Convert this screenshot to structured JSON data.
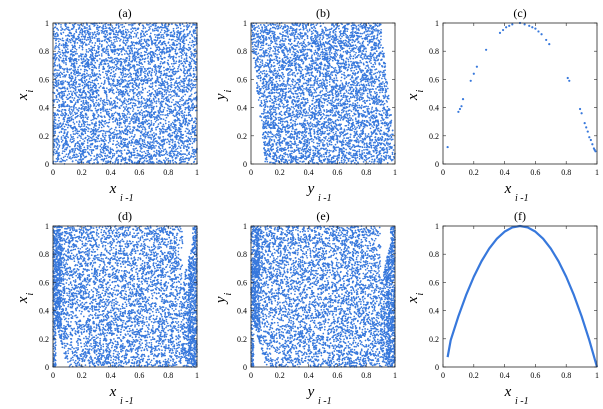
{
  "colors": {
    "series": "#3778dc",
    "axis": "#262626",
    "background": "#ffffff"
  },
  "chart_data": [
    {
      "panel": "(a)",
      "type": "scatter",
      "pattern": "uniform",
      "xlabel": "x",
      "xlabel_sub": "i -1",
      "ylabel": "x",
      "ylabel_sub": "i",
      "xlim": [
        0,
        1
      ],
      "ylim": [
        0,
        1
      ],
      "xticks": [
        "0",
        "0.2",
        "0.4",
        "0.6",
        "0.8",
        "1"
      ],
      "yticks": [
        "0",
        "0.2",
        "0.4",
        "0.6",
        "0.8",
        "1"
      ],
      "n_points": 5000,
      "grid": false
    },
    {
      "panel": "(b)",
      "type": "scatter",
      "pattern": "edge-curved",
      "xlabel": "y",
      "xlabel_sub": "i -1",
      "ylabel": "y",
      "ylabel_sub": "i",
      "xlim": [
        0,
        1
      ],
      "ylim": [
        0,
        1
      ],
      "xticks": [
        "0",
        "0.2",
        "0.4",
        "0.6",
        "0.8",
        "1"
      ],
      "yticks": [
        "0",
        "0.2",
        "0.4",
        "0.6",
        "0.8",
        "1"
      ],
      "n_points": 5000,
      "grid": false
    },
    {
      "panel": "(c)",
      "type": "scatter",
      "pattern": "points",
      "xlabel": "x",
      "xlabel_sub": "i -1",
      "ylabel": "x",
      "ylabel_sub": "i",
      "xlim": [
        0,
        1
      ],
      "ylim": [
        0,
        1
      ],
      "xticks": [
        "0",
        "0.2",
        "0.4",
        "0.6",
        "0.8",
        "1"
      ],
      "yticks": [
        "0",
        "0.2",
        "0.4",
        "0.6",
        "0.8",
        "1"
      ],
      "grid": false,
      "points": [
        [
          0.03,
          0.12
        ],
        [
          0.1,
          0.37
        ],
        [
          0.11,
          0.39
        ],
        [
          0.12,
          0.41
        ],
        [
          0.13,
          0.46
        ],
        [
          0.18,
          0.59
        ],
        [
          0.2,
          0.64
        ],
        [
          0.22,
          0.69
        ],
        [
          0.28,
          0.81
        ],
        [
          0.37,
          0.93
        ],
        [
          0.39,
          0.95
        ],
        [
          0.41,
          0.97
        ],
        [
          0.43,
          0.98
        ],
        [
          0.45,
          0.99
        ],
        [
          0.5,
          1.0
        ],
        [
          0.53,
          0.99
        ],
        [
          0.56,
          0.98
        ],
        [
          0.58,
          0.97
        ],
        [
          0.6,
          0.96
        ],
        [
          0.62,
          0.94
        ],
        [
          0.64,
          0.92
        ],
        [
          0.67,
          0.88
        ],
        [
          0.69,
          0.85
        ],
        [
          0.81,
          0.61
        ],
        [
          0.82,
          0.59
        ],
        [
          0.89,
          0.39
        ],
        [
          0.9,
          0.36
        ],
        [
          0.92,
          0.29
        ],
        [
          0.93,
          0.26
        ],
        [
          0.94,
          0.23
        ],
        [
          0.95,
          0.19
        ],
        [
          0.96,
          0.17
        ],
        [
          0.97,
          0.14
        ],
        [
          0.98,
          0.11
        ],
        [
          0.985,
          0.1
        ],
        [
          0.99,
          0.09
        ]
      ]
    },
    {
      "panel": "(d)",
      "type": "scatter",
      "pattern": "edge-dense",
      "xlabel": "x",
      "xlabel_sub": "i -1",
      "ylabel": "x",
      "ylabel_sub": "i",
      "xlim": [
        0,
        1
      ],
      "ylim": [
        0,
        1
      ],
      "xticks": [
        "0",
        "0.2",
        "0.4",
        "0.6",
        "0.8",
        "1"
      ],
      "yticks": [
        "0",
        "0.2",
        "0.4",
        "0.6",
        "0.8",
        "1"
      ],
      "n_points": 5500,
      "grid": false
    },
    {
      "panel": "(e)",
      "type": "scatter",
      "pattern": "edge-dense",
      "xlabel": "y",
      "xlabel_sub": "i -1",
      "ylabel": "y",
      "ylabel_sub": "i",
      "xlim": [
        0,
        1
      ],
      "ylim": [
        0,
        1
      ],
      "xticks": [
        "0",
        "0.2",
        "0.4",
        "0.6",
        "0.8",
        "1"
      ],
      "yticks": [
        "0",
        "0.2",
        "0.4",
        "0.6",
        "0.8",
        "1"
      ],
      "n_points": 5500,
      "grid": false
    },
    {
      "panel": "(f)",
      "type": "line",
      "xlabel": "x",
      "xlabel_sub": "i -1",
      "ylabel": "x",
      "ylabel_sub": "i",
      "xlim": [
        0,
        1
      ],
      "ylim": [
        0,
        1
      ],
      "xticks": [
        "0",
        "0.2",
        "0.4",
        "0.6",
        "0.8",
        "1"
      ],
      "yticks": [
        "0",
        "0.2",
        "0.4",
        "0.6",
        "0.8",
        "1"
      ],
      "grid": false,
      "x": [
        0.03,
        0.05,
        0.1,
        0.15,
        0.2,
        0.25,
        0.3,
        0.35,
        0.4,
        0.45,
        0.5,
        0.55,
        0.6,
        0.65,
        0.7,
        0.75,
        0.8,
        0.85,
        0.9,
        0.95,
        1.0
      ],
      "y": [
        0.07,
        0.19,
        0.36,
        0.51,
        0.64,
        0.75,
        0.84,
        0.91,
        0.96,
        0.99,
        1.0,
        0.99,
        0.96,
        0.91,
        0.84,
        0.75,
        0.64,
        0.51,
        0.36,
        0.19,
        0.0
      ]
    }
  ]
}
